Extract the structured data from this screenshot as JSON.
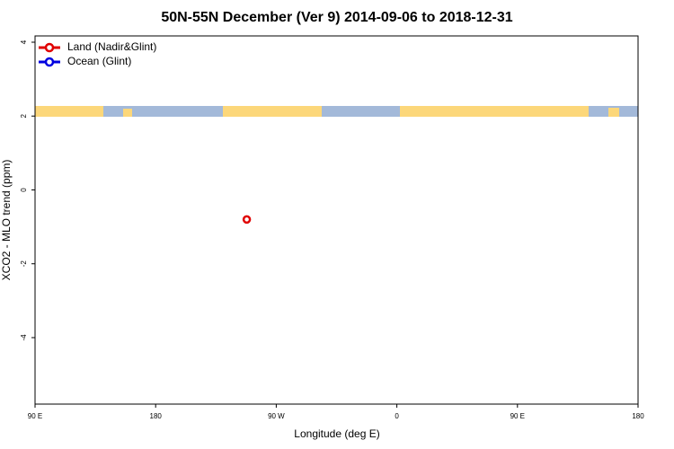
{
  "chart_data": {
    "type": "scatter",
    "title": "50N-55N December (Ver 9)   2014-09-06 to 2018-12-31",
    "x_label": "Longitude (deg E)",
    "y_label": "XCO2 - MLO trend (ppm)",
    "xlim": [
      90,
      540
    ],
    "xticks": [
      {
        "value": 90,
        "label": "90 E"
      },
      180,
      {
        "value": 270,
        "label": "90 W"
      },
      {
        "value": 360,
        "label": "0"
      },
      {
        "value": 450,
        "label": "90 E"
      },
      {
        "value": 540,
        "label": "180"
      }
    ],
    "ylim": [
      -5.8,
      4.17
    ],
    "yticks": [
      -4,
      -2,
      0,
      2,
      4
    ],
    "legend": "top-left",
    "series": [
      {
        "name": "Land (Nadir&Glint)",
        "color": "#e00000",
        "x": [
          248
        ],
        "values": [
          -0.8
        ]
      },
      {
        "name": "Ocean (Glint)",
        "color": "#0000e0",
        "x": [],
        "values": []
      }
    ]
  }
}
